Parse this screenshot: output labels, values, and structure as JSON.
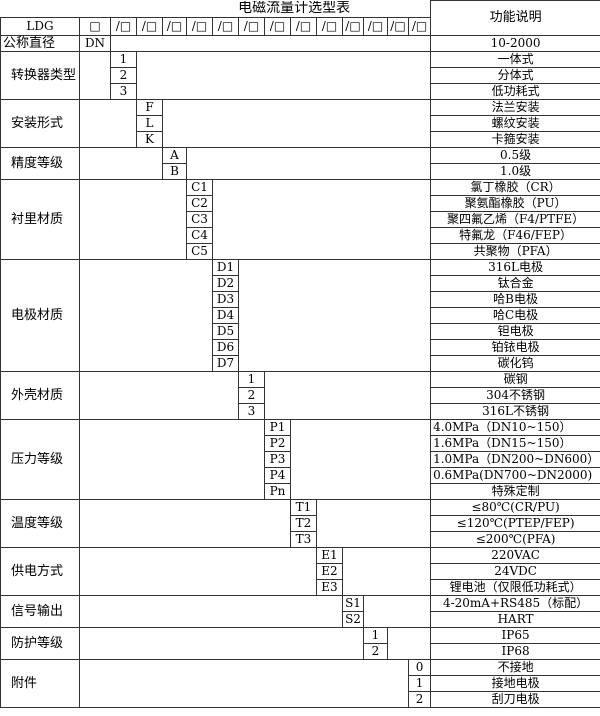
{
  "title": "电磁流量计选型表",
  "function_header": "功能说明",
  "model_prefix": "LDG",
  "first_slot": "□",
  "slot_label": "/□",
  "slot_count": 13,
  "nominal": {
    "label": "公称直径",
    "code": "DN",
    "desc": "10-2000"
  },
  "groups": [
    {
      "label": "转换器类型",
      "col": 0,
      "options": [
        {
          "code": "1",
          "desc": "一体式"
        },
        {
          "code": "2",
          "desc": "分体式"
        },
        {
          "code": "3",
          "desc": "低功耗式"
        }
      ]
    },
    {
      "label": "安装形式",
      "col": 1,
      "options": [
        {
          "code": "F",
          "desc": "法兰安装"
        },
        {
          "code": "L",
          "desc": "螺纹安装"
        },
        {
          "code": "K",
          "desc": "卡箍安装"
        }
      ]
    },
    {
      "label": "精度等级",
      "col": 2,
      "options": [
        {
          "code": "A",
          "desc": "0.5级"
        },
        {
          "code": "B",
          "desc": "1.0级"
        }
      ]
    },
    {
      "label": "衬里材质",
      "col": 3,
      "options": [
        {
          "code": "C1",
          "desc": "氯丁橡胶（CR）"
        },
        {
          "code": "C2",
          "desc": "聚氨酯橡胶（PU）"
        },
        {
          "code": "C3",
          "desc": "聚四氟乙烯（F4/PTFE）"
        },
        {
          "code": "C4",
          "desc": "特氟龙（F46/FEP）"
        },
        {
          "code": "C5",
          "desc": "共聚物（PFA）"
        }
      ]
    },
    {
      "label": "电极材质",
      "col": 4,
      "options": [
        {
          "code": "D1",
          "desc": "316L电极"
        },
        {
          "code": "D2",
          "desc": "钛合金"
        },
        {
          "code": "D3",
          "desc": "哈B电极"
        },
        {
          "code": "D4",
          "desc": "哈C电极"
        },
        {
          "code": "D5",
          "desc": "钽电极"
        },
        {
          "code": "D6",
          "desc": "铂铱电极"
        },
        {
          "code": "D7",
          "desc": "碳化钨"
        }
      ]
    },
    {
      "label": "外壳材质",
      "col": 5,
      "options": [
        {
          "code": "1",
          "desc": "碳钢"
        },
        {
          "code": "2",
          "desc": "304不锈钢"
        },
        {
          "code": "3",
          "desc": "316L不锈钢"
        }
      ]
    },
    {
      "label": "压力等级",
      "col": 6,
      "options": [
        {
          "code": "P1",
          "desc": "4.0MPa（DN10~150）"
        },
        {
          "code": "P2",
          "desc": "1.6MPa（DN15~150）"
        },
        {
          "code": "P3",
          "desc": "1.0MPa（DN200~DN600）"
        },
        {
          "code": "P4",
          "desc": "0.6MPa(DN700~DN2000)"
        },
        {
          "code": "Pn",
          "desc": "特殊定制"
        }
      ]
    },
    {
      "label": "温度等级",
      "col": 7,
      "options": [
        {
          "code": "T1",
          "desc": "≤80℃(CR/PU)"
        },
        {
          "code": "T2",
          "desc": "≤120℃(PTEP/FEP)"
        },
        {
          "code": "T3",
          "desc": "≤200℃(PFA)"
        }
      ]
    },
    {
      "label": "供电方式",
      "col": 8,
      "options": [
        {
          "code": "E1",
          "desc": "220VAC"
        },
        {
          "code": "E2",
          "desc": "24VDC"
        },
        {
          "code": "E3",
          "desc": "锂电池（仅限低功耗式）"
        }
      ]
    },
    {
      "label": "信号输出",
      "col": 9,
      "options": [
        {
          "code": "S1",
          "desc": "4-20mA+RS485（标配）"
        },
        {
          "code": "S2",
          "desc": "HART"
        }
      ]
    },
    {
      "label": "防护等级",
      "col": 10,
      "options": [
        {
          "code": "1",
          "desc": "IP65"
        },
        {
          "code": "2",
          "desc": "IP68"
        }
      ]
    },
    {
      "label": "附件",
      "col": 12,
      "options": [
        {
          "code": "0",
          "desc": "不接地"
        },
        {
          "code": "1",
          "desc": "接地电极"
        },
        {
          "code": "2",
          "desc": "刮刀电极"
        }
      ]
    }
  ]
}
